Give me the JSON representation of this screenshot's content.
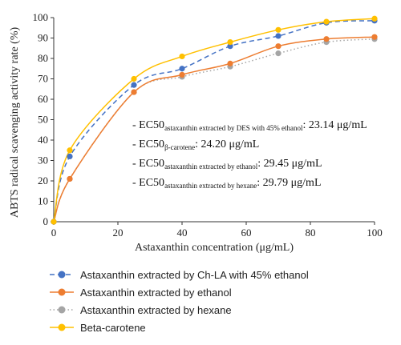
{
  "chart_data": {
    "type": "line",
    "xlabel": "Astaxanthin concentration (μg/mL)",
    "ylabel": "ABTS radical scavenging activity rate (%)",
    "xlim": [
      0,
      100
    ],
    "ylim": [
      0,
      100
    ],
    "xticks": [
      0,
      20,
      40,
      60,
      80,
      100
    ],
    "yticks": [
      0,
      10,
      20,
      30,
      40,
      50,
      60,
      70,
      80,
      90,
      100
    ],
    "grid": false,
    "legend_position": "bottom",
    "x": [
      0,
      5,
      25,
      40,
      55,
      70,
      85,
      100
    ],
    "series": [
      {
        "name": "Astaxanthin extracted by Ch-LA with 45% ethanol",
        "values": [
          0,
          32,
          67,
          75,
          86,
          91,
          97.5,
          98.5
        ],
        "color": "#4472c4",
        "dash": "6,4"
      },
      {
        "name": "Astaxanthin extracted by ethanol",
        "values": [
          0,
          21,
          63.5,
          72,
          77.5,
          86,
          89.5,
          90.5
        ],
        "color": "#ed7d31",
        "dash": ""
      },
      {
        "name": "Astaxanthin extracted by hexane",
        "values": [
          0,
          21,
          63.5,
          71,
          76,
          82.5,
          88,
          89.5
        ],
        "color": "#a5a5a5",
        "dash": "1.5,3"
      },
      {
        "name": "Beta-carotene",
        "values": [
          0,
          35,
          70,
          81,
          88,
          94,
          98,
          99.5
        ],
        "color": "#ffc000",
        "dash": ""
      }
    ],
    "annotations": [
      {
        "prefix": "- EC50",
        "sub": "astaxanthin extracted by DES with 45% ethanol",
        "value": ": 23.14 μg/mL"
      },
      {
        "prefix": "- EC50",
        "sub": "β-carotene",
        "value": ": 24.20 μg/mL"
      },
      {
        "prefix": "- EC50",
        "sub": "astaxanthin extracted by ethanol",
        "value": ": 29.45 μg/mL"
      },
      {
        "prefix": "- EC50",
        "sub": "astaxanthin extracted by hexane",
        "value": ": 29.79 μg/mL"
      }
    ]
  }
}
